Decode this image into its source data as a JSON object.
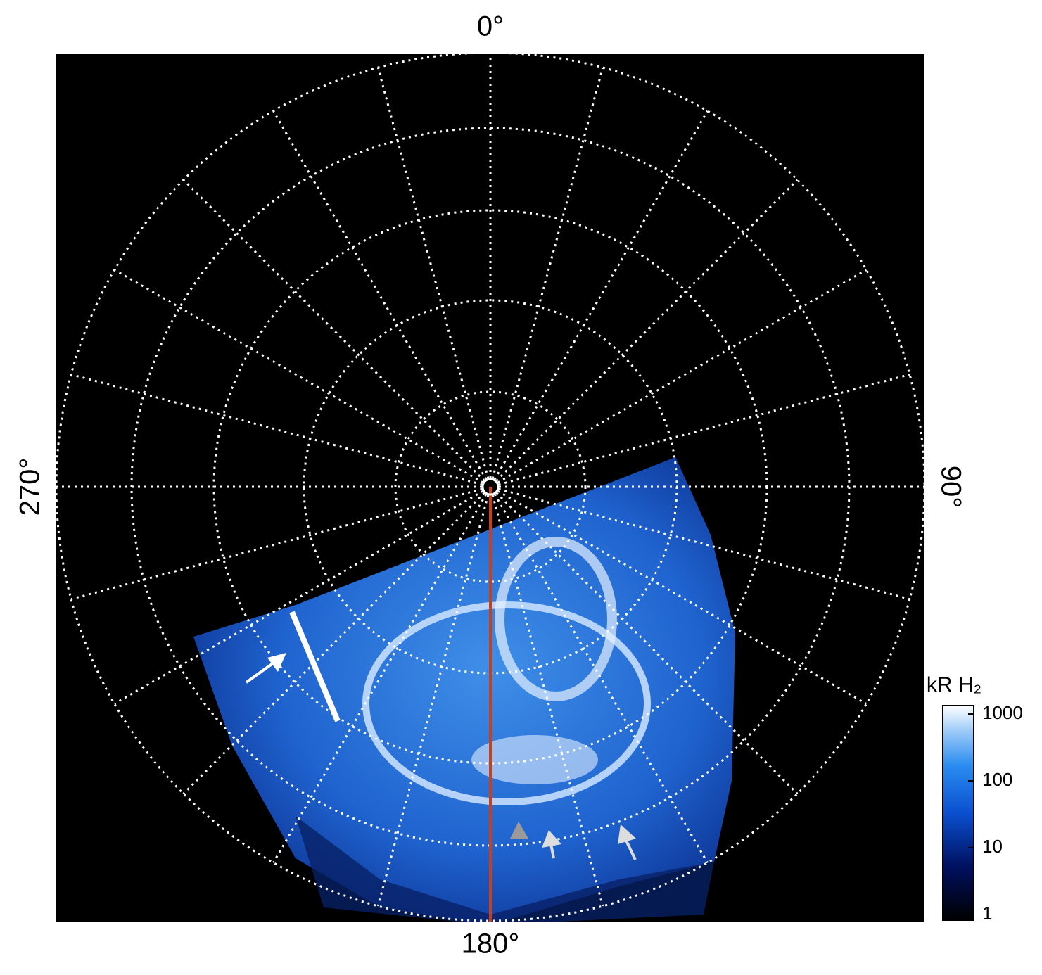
{
  "chart_data": {
    "type": "polar-image",
    "thetaticks": [
      {
        "value": 0,
        "label": "0°"
      },
      {
        "value": 90,
        "label": "90°"
      },
      {
        "value": 180,
        "label": "180°"
      },
      {
        "value": 270,
        "label": "270°"
      }
    ],
    "colorbar": {
      "label": "kR H₂",
      "lim": [
        1,
        1000
      ],
      "ticks": [
        1,
        10,
        100,
        1000
      ],
      "log": true
    }
  }
}
